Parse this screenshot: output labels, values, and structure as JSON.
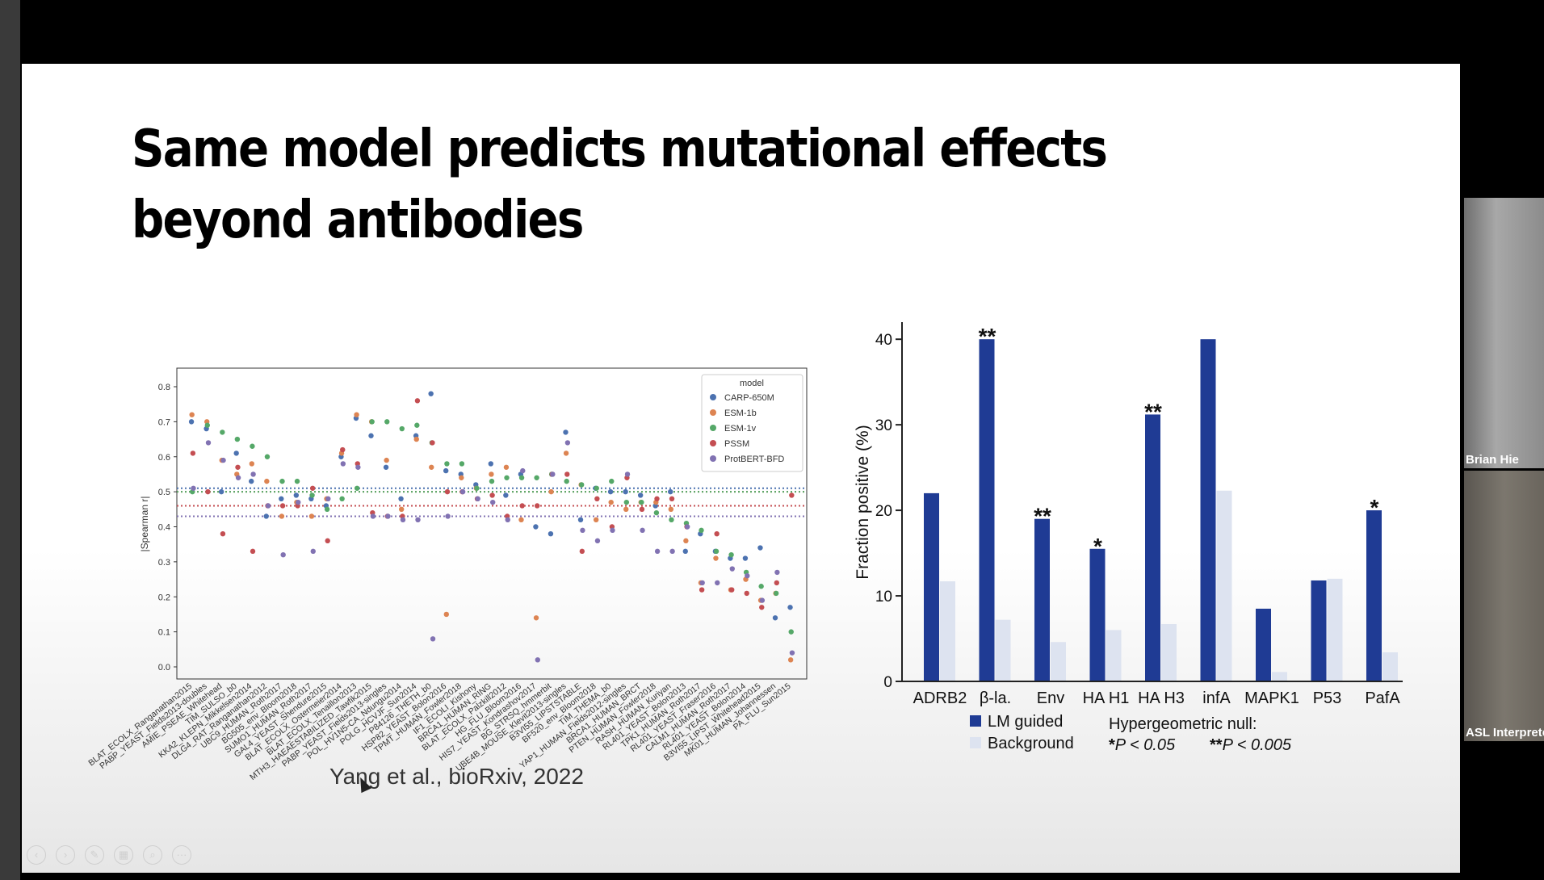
{
  "slide": {
    "title": "Same model predicts mutational effects beyond antibodies",
    "citation": "Yang et al., bioRxiv, 2022"
  },
  "participants": [
    {
      "name": "Brian Hie"
    },
    {
      "name": "ASL Interprete"
    }
  ],
  "toolbar": {
    "icons": [
      "prev-icon",
      "next-icon",
      "pen-icon",
      "slides-icon",
      "zoom-icon",
      "more-icon"
    ]
  },
  "chart_data": [
    {
      "type": "scatter",
      "ylabel": "|Spearman r|",
      "ylim": [
        0,
        0.8
      ],
      "yticks": [
        0.0,
        0.1,
        0.2,
        0.3,
        0.4,
        0.5,
        0.6,
        0.7,
        0.8
      ],
      "legend_title": "model",
      "legend_position": "top-right",
      "categories": [
        "BLAT_ECOLX_Ranganathan2015",
        "PABP_YEAST_Fields2013-doubles",
        "AMIE_PSEAE_Whitehead",
        "TIM_SULSO_b0",
        "KKA2_KLEPN_Mikkelsen2014",
        "DLG4_RAT_Ranganathan2012",
        "UBC9_HUMAN_Roth2017",
        "BG505_env_Bloom2018",
        "SUMO1_HUMAN_Roth2017",
        "GAL4_YEAST_Shendure2015",
        "BLAT_ECOLX_Ostermeier2014",
        "BLAT_ECOLX_Tenaillon2013",
        "MTH3_HAEAESTABILIZED_Tawfik2015",
        "PABP_YEAST_Fields2013-singles",
        "POL_HV1N5-CA_Ndungu2014",
        "POLG_HCVJF_Sun2014",
        "P84126_THETH_b0",
        "HSP82_YEAST_Bolon2016",
        "TPMT_HUMAN_Fowler2018",
        "IF1_ECOLI_Kishony",
        "BRCA1_HUMAN_RING",
        "BLAT_ECOLX_Palzkill2012",
        "HG_FLU_Bloom2016",
        "HIS7_YEAST_Kondrashov2017",
        "BG_STRSQ_hmmerbit",
        "UBE4B_MOUSE_Klevit2013-singles",
        "B3VI55_LIPSTSTABLE",
        "BF520_env_Bloom2018",
        "TIM_THEMA_b0",
        "YAP1_HUMAN_Fields2012-singles",
        "BRCA1_HUMAN_BRCT",
        "PTEN_HUMAN_Fowler2018",
        "RASH_HUMAN_Kuriyan",
        "RL401_YEAST_Bolon2013",
        "TPK1_HUMAN_Roth2017",
        "RL401_YEAST_Fraser2016",
        "CALM1_HUMAN_Roth2017",
        "RL401_YEAST_Bolon2014",
        "B3VI55_LIPST_Whitehead2015",
        "MK01_HUMAN_Johannessen",
        "PA_FLU_Sun2015"
      ],
      "series": [
        {
          "name": "CARP-650M",
          "color": "#4c72b0",
          "values": [
            0.7,
            0.68,
            0.5,
            0.61,
            0.53,
            0.43,
            0.48,
            0.49,
            0.48,
            0.46,
            0.6,
            0.71,
            0.66,
            0.57,
            0.48,
            0.66,
            0.78,
            0.56,
            0.55,
            0.52,
            0.58,
            0.49,
            0.55,
            0.4,
            0.38,
            0.67,
            0.42,
            0.51,
            0.5,
            0.5,
            0.49,
            0.46,
            0.5,
            0.33,
            0.38,
            0.33,
            0.31,
            0.31,
            0.34,
            0.14,
            0.17
          ]
        },
        {
          "name": "ESM-1b",
          "color": "#dd8452",
          "values": [
            0.72,
            0.7,
            0.59,
            0.55,
            0.58,
            0.53,
            0.43,
            0.47,
            0.43,
            0.48,
            0.61,
            0.72,
            0.7,
            0.59,
            0.45,
            0.65,
            0.57,
            0.15,
            0.54,
            0.51,
            0.55,
            0.57,
            0.42,
            0.14,
            0.5,
            0.61,
            0.52,
            0.42,
            0.47,
            0.45,
            0.47,
            0.47,
            0.45,
            0.36,
            0.24,
            0.31,
            0.22,
            0.25,
            0.19,
            0.21,
            0.02
          ]
        },
        {
          "name": "ESM-1v",
          "color": "#55a868",
          "values": [
            0.5,
            0.69,
            0.67,
            0.65,
            0.63,
            0.6,
            0.53,
            0.53,
            0.49,
            0.45,
            0.48,
            0.51,
            0.7,
            0.7,
            0.68,
            0.69,
            0.64,
            0.58,
            0.58,
            0.51,
            0.53,
            0.54,
            0.54,
            0.54,
            0.55,
            0.53,
            0.52,
            0.51,
            0.53,
            0.47,
            0.47,
            0.44,
            0.42,
            0.41,
            0.39,
            0.33,
            0.32,
            0.27,
            0.23,
            0.21,
            0.1
          ]
        },
        {
          "name": "PSSM",
          "color": "#c44e52",
          "values": [
            0.61,
            0.5,
            0.38,
            0.57,
            0.33,
            0.46,
            0.46,
            0.46,
            0.51,
            0.36,
            0.62,
            0.58,
            0.44,
            0.43,
            0.43,
            0.76,
            0.64,
            0.5,
            0.5,
            0.48,
            0.49,
            0.43,
            0.46,
            0.46,
            0.55,
            0.55,
            0.33,
            0.48,
            0.4,
            0.54,
            0.45,
            0.48,
            0.48,
            0.4,
            0.22,
            0.38,
            0.22,
            0.21,
            0.17,
            0.24,
            0.49
          ]
        },
        {
          "name": "ProtBERT-BFD",
          "color": "#8172b2",
          "values": [
            0.51,
            0.64,
            0.59,
            0.54,
            0.55,
            0.46,
            0.32,
            0.47,
            0.33,
            0.48,
            0.58,
            0.57,
            0.43,
            0.43,
            0.42,
            0.42,
            0.08,
            0.43,
            0.5,
            0.48,
            0.47,
            0.42,
            0.56,
            0.02,
            0.55,
            0.64,
            0.39,
            0.36,
            0.39,
            0.55,
            0.39,
            0.33,
            0.33,
            0.4,
            0.24,
            0.24,
            0.28,
            0.26,
            0.19,
            0.27,
            0.04
          ]
        }
      ],
      "reference_lines": [
        {
          "color": "#4c72b0",
          "value": 0.51
        },
        {
          "color": "#dd8452",
          "value": 0.5
        },
        {
          "color": "#55a868",
          "value": 0.5
        },
        {
          "color": "#c44e52",
          "value": 0.46
        },
        {
          "color": "#8172b2",
          "value": 0.43
        }
      ]
    },
    {
      "type": "bar",
      "ylabel": "Fraction positive (%)",
      "ylim": [
        0,
        42
      ],
      "yticks": [
        0,
        10,
        20,
        30,
        40
      ],
      "categories": [
        "ADRB2",
        "β-la.",
        "Env",
        "HA H1",
        "HA H3",
        "infA",
        "MAPK1",
        "P53",
        "PafA"
      ],
      "series": [
        {
          "name": "LM guided",
          "color": "#1f3b94",
          "values": [
            22,
            40,
            19,
            15.5,
            31.2,
            40,
            8.5,
            11.8,
            20
          ]
        },
        {
          "name": "Background",
          "color": "#dde3f0",
          "values": [
            11.7,
            7.2,
            4.6,
            6,
            6.7,
            22.3,
            1.1,
            12,
            3.4
          ]
        }
      ],
      "significance": [
        "",
        "**",
        "**",
        "*",
        "**",
        "",
        "",
        "",
        "*"
      ],
      "legend_note_title": "Hypergeometric null:",
      "legend_note_items": [
        {
          "stars": "*",
          "text": "P < 0.05"
        },
        {
          "stars": "**",
          "text": "P < 0.005"
        }
      ]
    }
  ]
}
